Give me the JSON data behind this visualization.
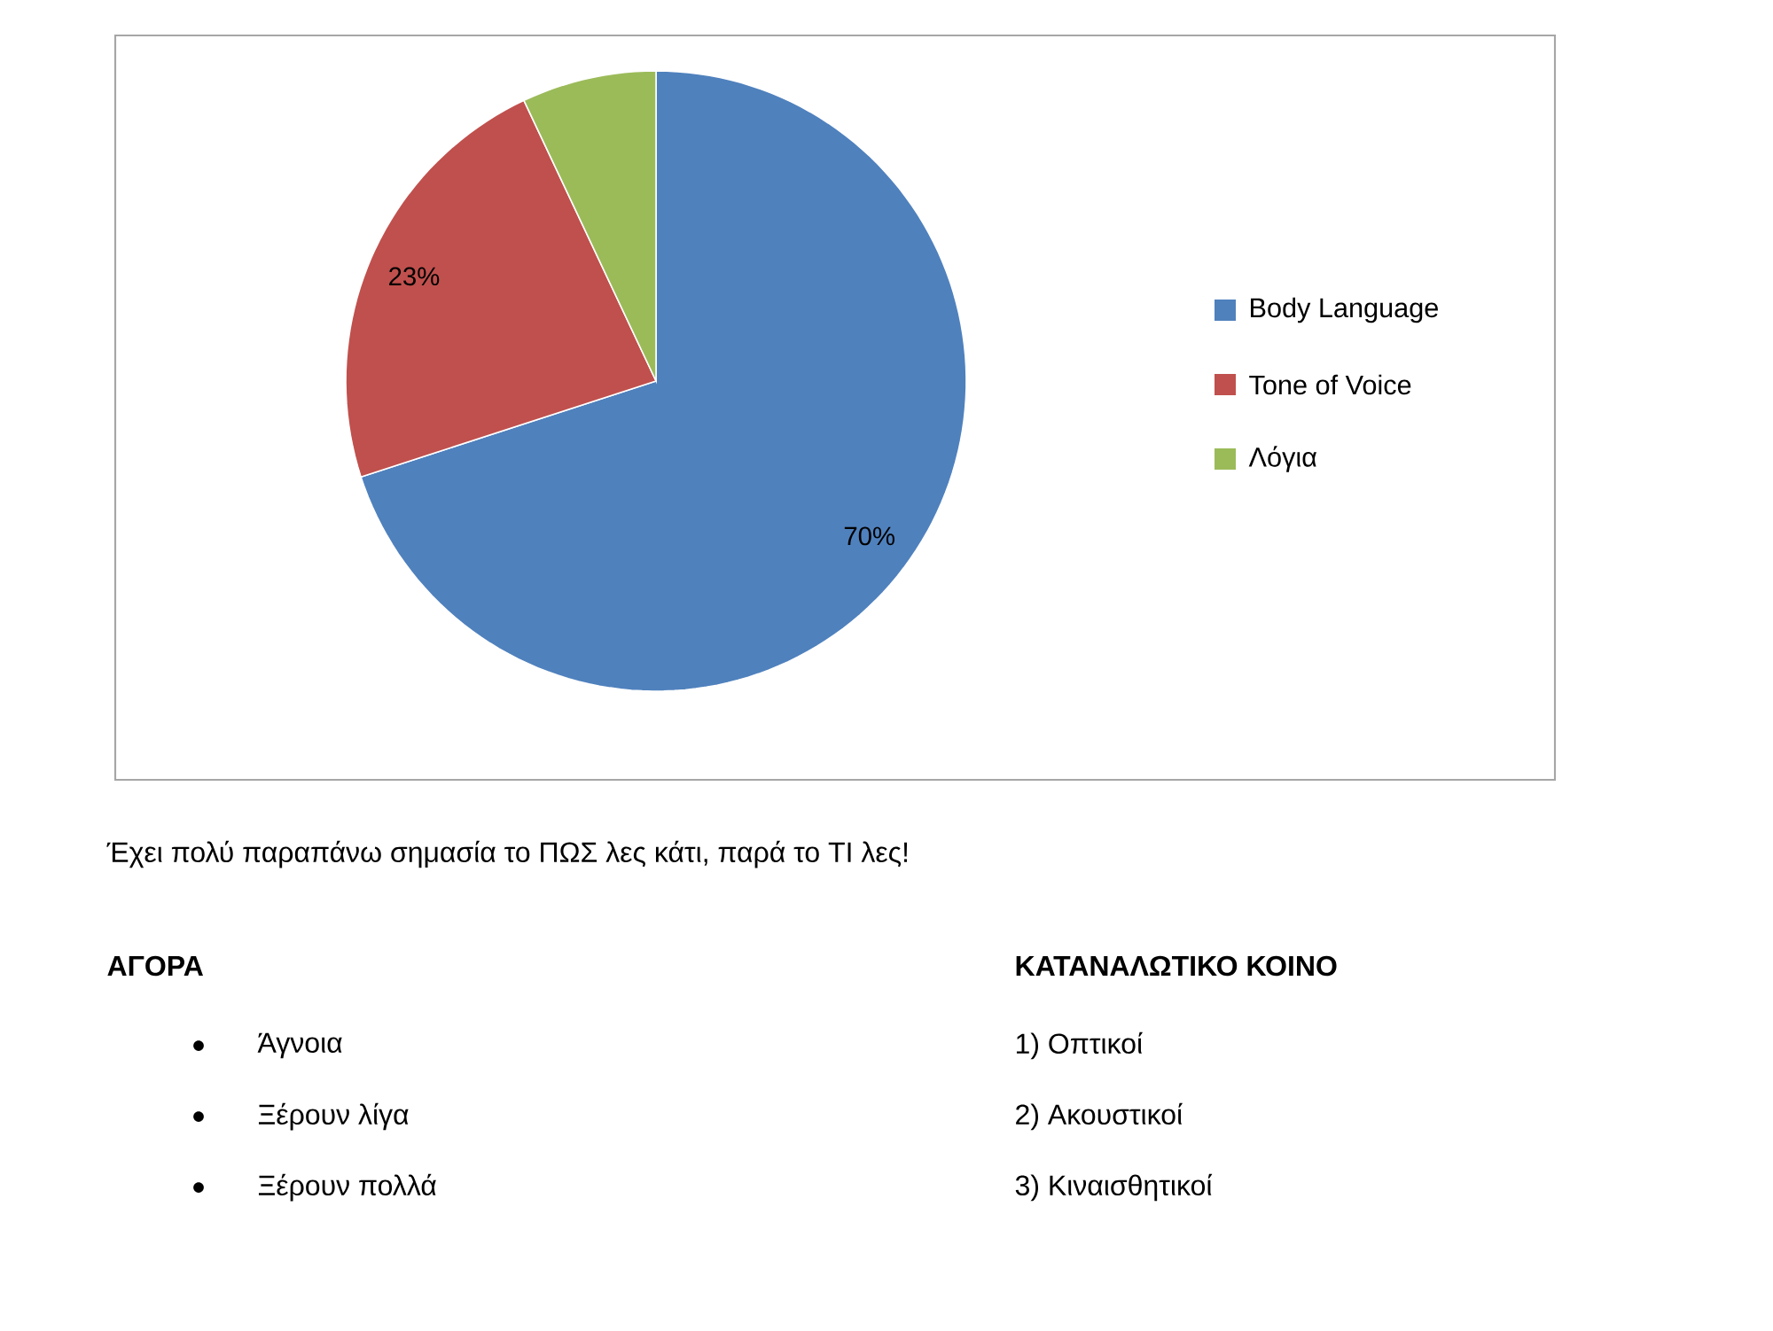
{
  "chart_data": {
    "type": "pie",
    "categories": [
      "Body Language",
      "Tone of Voice",
      "Λόγια"
    ],
    "values": [
      70,
      23,
      7
    ],
    "colors": [
      "#4f81bd",
      "#c0504d",
      "#9bbb59"
    ],
    "value_labels": [
      "70%",
      "23%",
      null
    ],
    "legend": "right",
    "annotations": [
      "Έχει πολύ παραπάνω σημασία το ΠΩΣ λες κάτι, παρά το ΤΙ λες!",
      "ΑΓΟΡΑ",
      "Άγνοια",
      "Ξέρουν λίγα",
      "Ξέρουν πολλά",
      "ΚΑΤΑΝΑΛΩΤΙΚΟ ΚΟΙΝΟ",
      "1) Οπτικοί",
      "2) Ακουστικοί",
      "3) Κιναισθητικοί"
    ]
  }
}
